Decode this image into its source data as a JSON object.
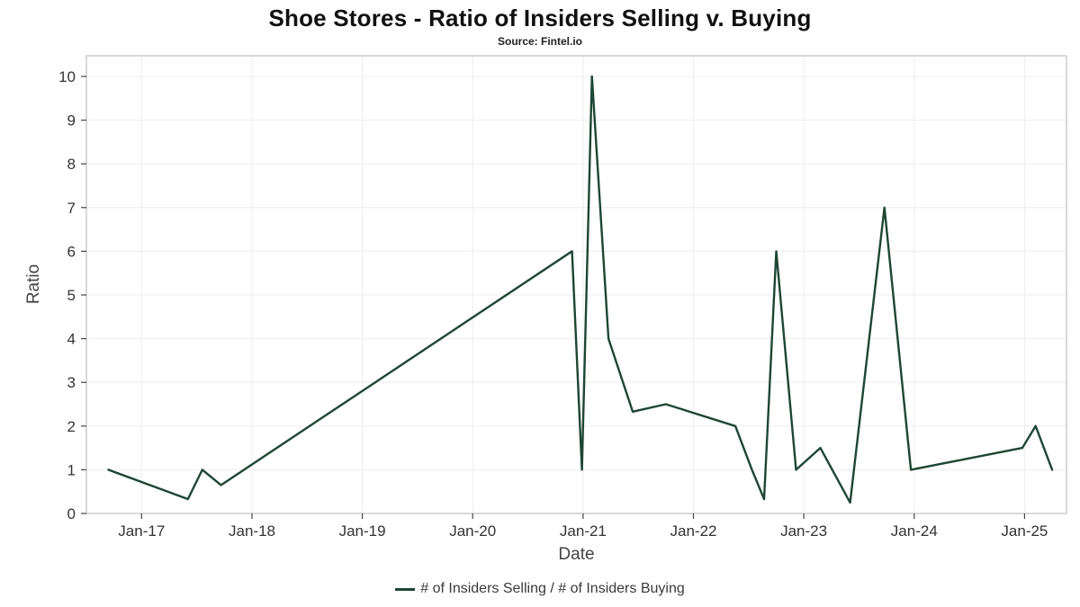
{
  "chart_data": {
    "type": "line",
    "title": "Shoe Stores - Ratio of Insiders Selling v. Buying",
    "subtitle": "Source: Fintel.io",
    "xlabel": "Date",
    "ylabel": "Ratio",
    "legend": "# of Insiders Selling / # of Insiders Buying",
    "legend_position": "bottom",
    "line_color": "#1e4632",
    "grid": true,
    "xlim": [
      2016.5,
      2025.38
    ],
    "ylim": [
      0,
      10
    ],
    "y_ticks": [
      0,
      1,
      2,
      3,
      4,
      5,
      6,
      7,
      8,
      9,
      10
    ],
    "x_ticks": [
      {
        "x": 2017,
        "label": "Jan-17"
      },
      {
        "x": 2018,
        "label": "Jan-18"
      },
      {
        "x": 2019,
        "label": "Jan-19"
      },
      {
        "x": 2020,
        "label": "Jan-20"
      },
      {
        "x": 2021,
        "label": "Jan-21"
      },
      {
        "x": 2022,
        "label": "Jan-22"
      },
      {
        "x": 2023,
        "label": "Jan-23"
      },
      {
        "x": 2024,
        "label": "Jan-24"
      },
      {
        "x": 2025,
        "label": "Jan-25"
      }
    ],
    "series": [
      {
        "name": "# of Insiders Selling / # of Insiders Buying",
        "points": [
          {
            "x": 2016.7,
            "y": 1.0
          },
          {
            "x": 2017.42,
            "y": 0.33
          },
          {
            "x": 2017.55,
            "y": 1.0
          },
          {
            "x": 2017.72,
            "y": 0.65
          },
          {
            "x": 2020.9,
            "y": 6.0
          },
          {
            "x": 2020.99,
            "y": 1.0
          },
          {
            "x": 2021.08,
            "y": 10.0
          },
          {
            "x": 2021.23,
            "y": 4.0
          },
          {
            "x": 2021.45,
            "y": 2.33
          },
          {
            "x": 2021.75,
            "y": 2.5
          },
          {
            "x": 2022.38,
            "y": 2.0
          },
          {
            "x": 2022.53,
            "y": 1.0
          },
          {
            "x": 2022.64,
            "y": 0.33
          },
          {
            "x": 2022.75,
            "y": 6.0
          },
          {
            "x": 2022.93,
            "y": 1.0
          },
          {
            "x": 2023.15,
            "y": 1.5
          },
          {
            "x": 2023.42,
            "y": 0.25
          },
          {
            "x": 2023.73,
            "y": 7.0
          },
          {
            "x": 2023.97,
            "y": 1.0
          },
          {
            "x": 2024.98,
            "y": 1.5
          },
          {
            "x": 2025.1,
            "y": 2.0
          },
          {
            "x": 2025.25,
            "y": 1.0
          }
        ]
      }
    ]
  }
}
